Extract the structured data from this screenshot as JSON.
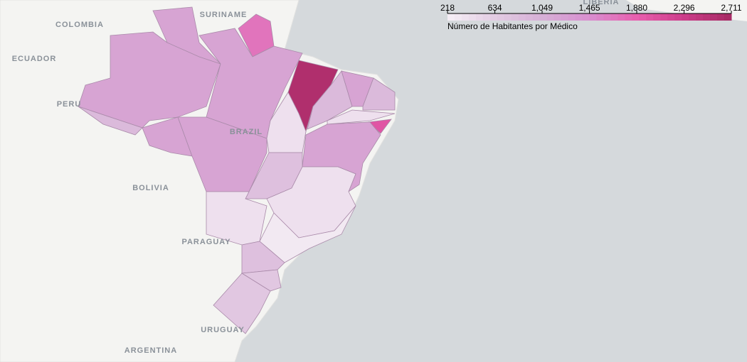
{
  "map_labels": [
    "COLOMBIA",
    "SURINAME",
    "ECUADOR",
    "PERU",
    "BRAZIL",
    "BOLIVIA",
    "PARAGUAY",
    "URUGUAY",
    "ARGENTINA",
    "LIBERIA"
  ],
  "legend": {
    "title": "Número de Habitantes por Médico",
    "ticks": [
      218,
      634,
      {
        "value": 1049,
        "label": "1,049"
      },
      {
        "value": 1465,
        "label": "1,465"
      },
      {
        "value": 1880,
        "label": "1,880"
      },
      {
        "value": 2296,
        "label": "2,296"
      },
      {
        "value": 2711,
        "label": "2,711"
      }
    ],
    "colors": [
      "#f6f0f6",
      "#e3cbe3",
      "#d6b0d6",
      "#d98fcf",
      "#e85fae",
      "#cc3d8a",
      "#a62a63"
    ]
  },
  "regions": {
    "values": [
      1200,
      1200,
      1700,
      1200,
      900,
      1200,
      1200,
      2600,
      400,
      900,
      1200,
      900,
      400,
      2000,
      1200,
      800,
      400,
      400,
      300,
      800,
      700,
      700
    ]
  }
}
